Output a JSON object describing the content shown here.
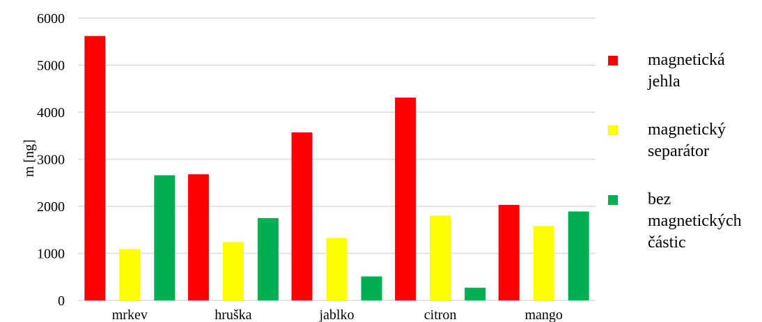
{
  "chart_data": {
    "type": "bar",
    "title": "",
    "xlabel": "",
    "ylabel": "m [ng]",
    "ylim": [
      0,
      6000
    ],
    "yticks": [
      0,
      1000,
      2000,
      3000,
      4000,
      5000,
      6000
    ],
    "grid": true,
    "legend_position": "right",
    "categories": [
      "mrkev",
      "hruška",
      "jablko",
      "citron",
      "mango"
    ],
    "series": [
      {
        "name": "magnetická jehla",
        "name_lines": [
          "magnetická",
          "jehla"
        ],
        "color": "#ff0000",
        "values": [
          5620,
          2680,
          3570,
          4310,
          2030
        ]
      },
      {
        "name": "magnetický separátor",
        "name_lines": [
          "magnetický",
          "separátor"
        ],
        "color": "#ffff00",
        "values": [
          1090,
          1240,
          1330,
          1800,
          1580
        ]
      },
      {
        "name": "bez magnetických částic",
        "name_lines": [
          "bez",
          "magnetických",
          "částic"
        ],
        "color": "#00b050",
        "values": [
          2660,
          1750,
          510,
          270,
          1890
        ]
      }
    ]
  }
}
